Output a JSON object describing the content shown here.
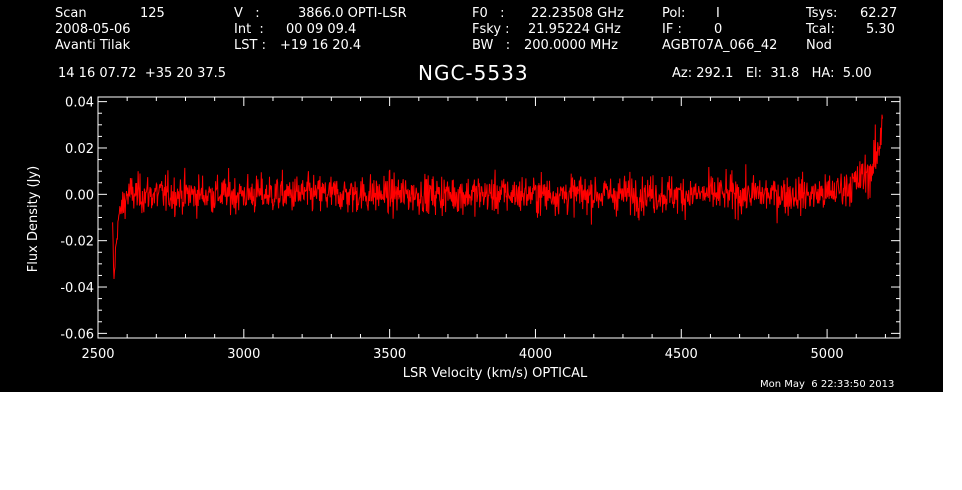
{
  "header": {
    "scan_label": "Scan",
    "scan_value": "125",
    "date": "2008-05-06",
    "observer": "Avanti Tilak",
    "v_label": "V   :",
    "v_value": "3866.0 OPTI-LSR",
    "int_label": "Int  :",
    "int_value": "00 09 09.4",
    "lst_label": "LST :",
    "lst_value": "+19 16 20.4",
    "f0_label": "F0   :",
    "f0_value": "22.23508 GHz",
    "fsky_label": "Fsky :",
    "fsky_value": "21.95224 GHz",
    "bw_label": "BW   :",
    "bw_value": "200.0000 MHz",
    "pol_label": "Pol:",
    "pol_value": "I",
    "if_label": "IF :",
    "if_value": "0",
    "project": "AGBT07A_066_42",
    "tsys_label": "Tsys:",
    "tsys_value": "62.27",
    "tcal_label": "Tcal:",
    "tcal_value": "5.30",
    "mode": "Nod",
    "coords": "14 16 07.72  +35 20 37.5",
    "source": "NGC-5533",
    "azelha": "Az: 292.1   El:  31.8   HA:  5.00"
  },
  "timestamp": "Mon May  6 22:33:50 2013",
  "chart_data": {
    "type": "line",
    "title": "NGC-5533",
    "xlabel": "LSR Velocity (km/s) OPTICAL",
    "ylabel": "Flux Density (Jy)",
    "xlim": [
      2500,
      5250
    ],
    "ylim": [
      -0.062,
      0.042
    ],
    "xticks": [
      2500,
      3000,
      3500,
      4000,
      4500,
      5000
    ],
    "xtick_labels": [
      "2500",
      "3000",
      "3500",
      "4000",
      "4500",
      "5000"
    ],
    "yticks": [
      -0.06,
      -0.04,
      -0.02,
      0.0,
      0.02,
      0.04
    ],
    "ytick_labels": [
      "-0.06",
      "-0.04",
      "-0.02",
      "0.00",
      "0.02",
      "0.04"
    ],
    "grid": false,
    "series": [
      {
        "color": "#ff0000",
        "x_range": [
          2550,
          5190
        ],
        "description": "noisy spectrum centered near 0.00 Jy, rms about 0.007 Jy, dip to about -0.04 near 2560 km/s, rise to about 0.037 near 5190 km/s",
        "points": [
          [
            2550,
            -0.015
          ],
          [
            2555,
            -0.038
          ],
          [
            2560,
            -0.025
          ],
          [
            2570,
            -0.01
          ],
          [
            2600,
            0.0
          ],
          [
            2800,
            0.0
          ],
          [
            3000,
            0.0
          ],
          [
            3200,
            0.0
          ],
          [
            3400,
            0.0
          ],
          [
            3600,
            0.0
          ],
          [
            3800,
            0.0
          ],
          [
            4000,
            0.0
          ],
          [
            4200,
            0.0
          ],
          [
            4400,
            0.0
          ],
          [
            4600,
            0.0
          ],
          [
            4800,
            0.0
          ],
          [
            5000,
            0.0
          ],
          [
            5100,
            0.005
          ],
          [
            5150,
            0.01
          ],
          [
            5180,
            0.02
          ],
          [
            5190,
            0.037
          ]
        ]
      }
    ]
  }
}
